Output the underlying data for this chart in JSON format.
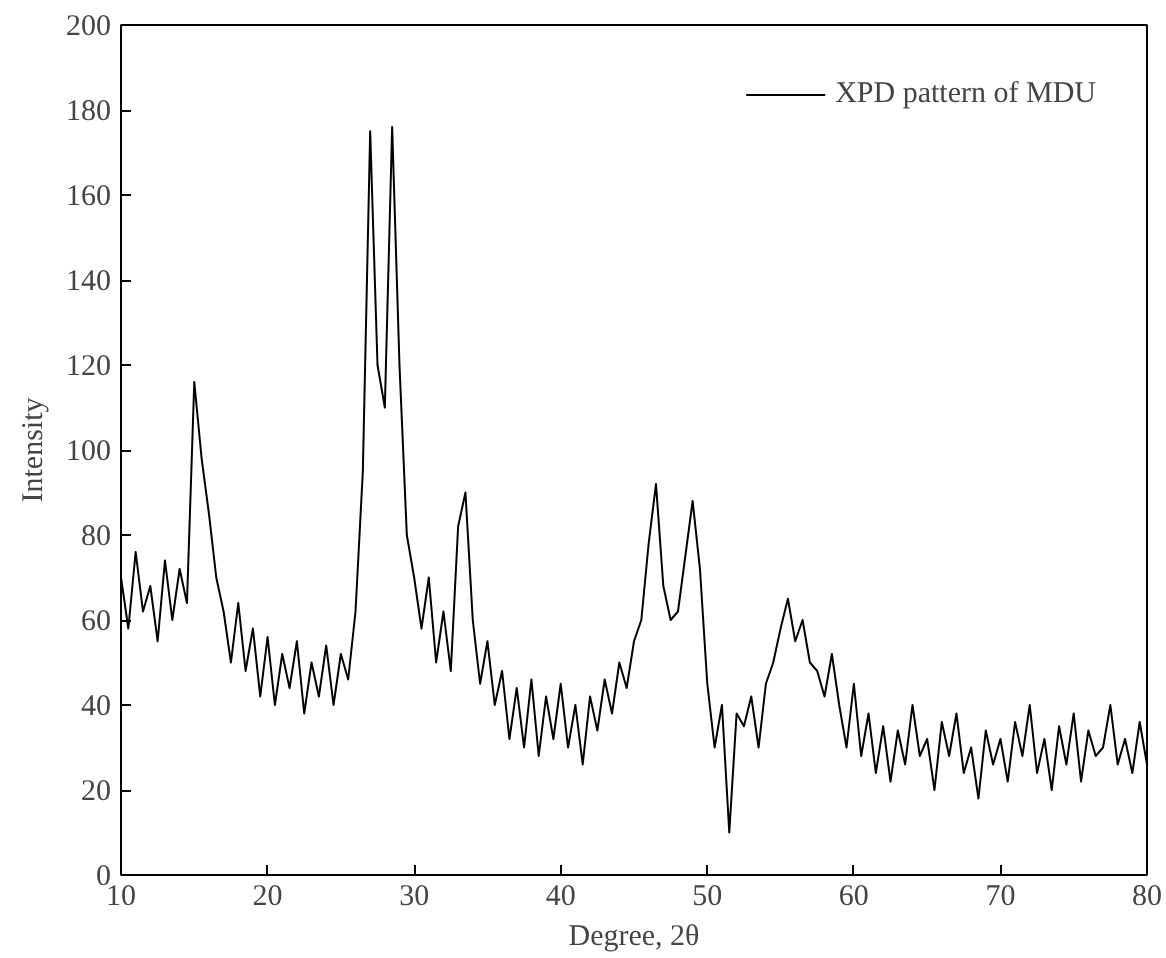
{
  "chart_data": {
    "type": "line",
    "xlabel": "Degree, 2θ",
    "ylabel": "Intensity",
    "legend": "top right",
    "grid": false,
    "xlim": [
      10,
      80
    ],
    "ylim": [
      0,
      200
    ],
    "xticks": [
      10,
      20,
      30,
      40,
      50,
      60,
      70,
      80
    ],
    "yticks": [
      0,
      20,
      40,
      60,
      80,
      100,
      120,
      140,
      160,
      180,
      200
    ],
    "x": [
      10,
      10.5,
      11,
      11.5,
      12,
      12.5,
      13,
      13.5,
      14,
      14.5,
      15,
      15.5,
      16,
      16.5,
      17,
      17.5,
      18,
      18.5,
      19,
      19.5,
      20,
      20.5,
      21,
      21.5,
      22,
      22.5,
      23,
      23.5,
      24,
      24.5,
      25,
      25.5,
      26,
      26.5,
      27,
      27.5,
      28,
      28.5,
      29,
      29.5,
      30,
      30.5,
      31,
      31.5,
      32,
      32.5,
      33,
      33.5,
      34,
      34.5,
      35,
      35.5,
      36,
      36.5,
      37,
      37.5,
      38,
      38.5,
      39,
      39.5,
      40,
      40.5,
      41,
      41.5,
      42,
      42.5,
      43,
      43.5,
      44,
      44.5,
      45,
      45.5,
      46,
      46.5,
      47,
      47.5,
      48,
      48.5,
      49,
      49.5,
      50,
      50.5,
      51,
      51.5,
      52,
      52.5,
      53,
      53.5,
      54,
      54.5,
      55,
      55.5,
      56,
      56.5,
      57,
      57.5,
      58,
      58.5,
      59,
      59.5,
      60,
      60.5,
      61,
      61.5,
      62,
      62.5,
      63,
      63.5,
      64,
      64.5,
      65,
      65.5,
      66,
      66.5,
      67,
      67.5,
      68,
      68.5,
      69,
      69.5,
      70,
      70.5,
      71,
      71.5,
      72,
      72.5,
      73,
      73.5,
      74,
      74.5,
      75,
      75.5,
      76,
      76.5,
      77,
      77.5,
      78,
      78.5,
      79,
      79.5,
      80
    ],
    "series": [
      {
        "name": "XPD pattern of MDU",
        "color": "#000000",
        "values": [
          70,
          58,
          76,
          62,
          68,
          55,
          74,
          60,
          72,
          64,
          116,
          98,
          85,
          70,
          62,
          50,
          64,
          48,
          58,
          42,
          56,
          40,
          52,
          44,
          55,
          38,
          50,
          42,
          54,
          40,
          52,
          46,
          62,
          95,
          175,
          120,
          110,
          176,
          120,
          80,
          70,
          58,
          70,
          50,
          62,
          48,
          82,
          90,
          60,
          45,
          55,
          40,
          48,
          32,
          44,
          30,
          46,
          28,
          42,
          32,
          45,
          30,
          40,
          26,
          42,
          34,
          46,
          38,
          50,
          44,
          55,
          60,
          78,
          92,
          68,
          60,
          62,
          75,
          88,
          72,
          45,
          30,
          40,
          10,
          38,
          35,
          42,
          30,
          45,
          50,
          58,
          65,
          55,
          60,
          50,
          48,
          42,
          52,
          40,
          30,
          45,
          28,
          38,
          24,
          35,
          22,
          34,
          26,
          40,
          28,
          32,
          20,
          36,
          28,
          38,
          24,
          30,
          18,
          34,
          26,
          32,
          22,
          36,
          28,
          40,
          24,
          32,
          20,
          35,
          26,
          38,
          22,
          34,
          28,
          30,
          40,
          26,
          32,
          24,
          36,
          26
        ]
      }
    ]
  }
}
